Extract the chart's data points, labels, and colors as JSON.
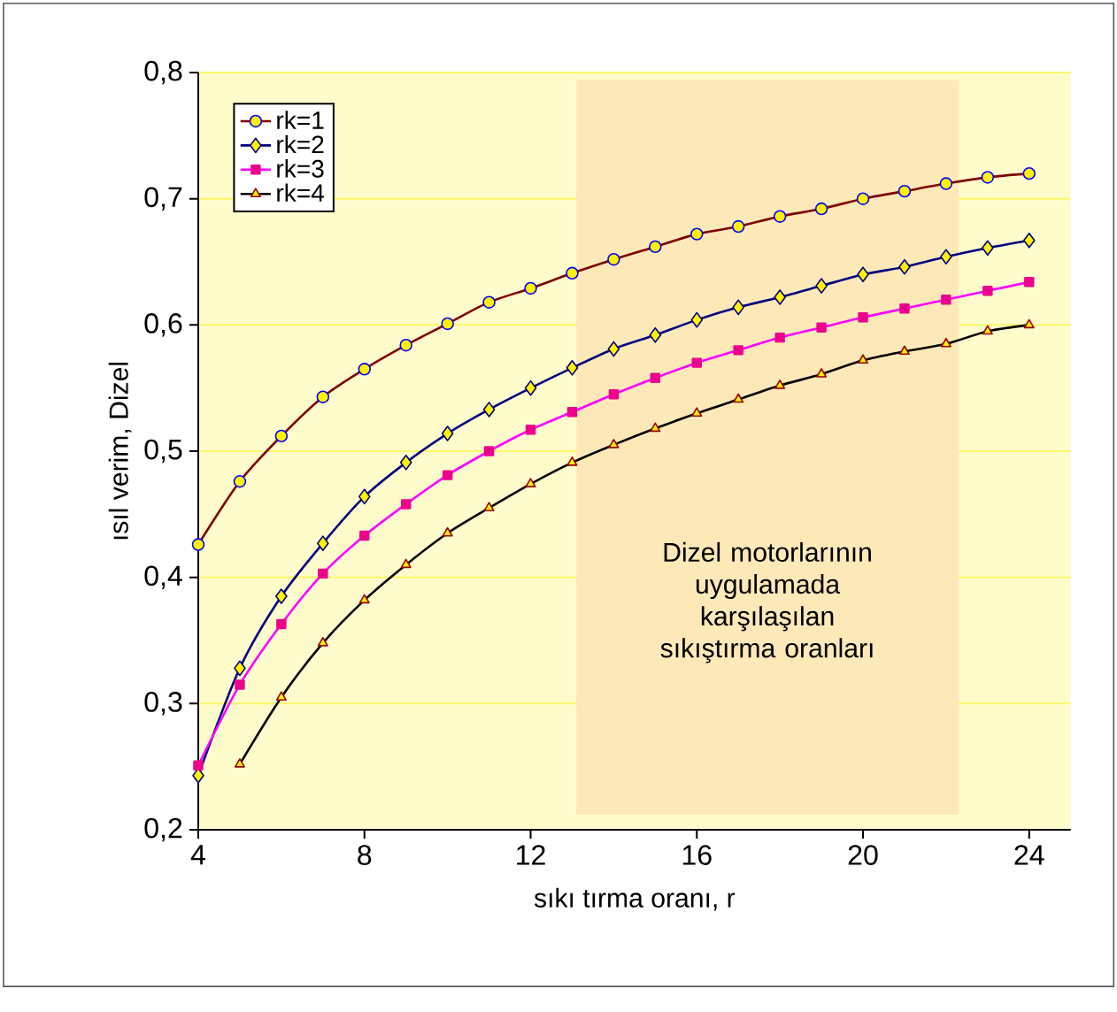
{
  "chart_data": {
    "type": "line",
    "xlabel": "sıkı tırma oranı, r",
    "ylabel": "ısıl verim,  Dizel",
    "x": [
      4,
      5,
      6,
      7,
      8,
      9,
      10,
      11,
      12,
      13,
      14,
      15,
      16,
      17,
      18,
      19,
      20,
      21,
      22,
      23,
      24
    ],
    "series": [
      {
        "name": "rk=1",
        "color": "#800000",
        "marker": "circle",
        "values": [
          0.426,
          0.476,
          0.512,
          0.543,
          0.565,
          0.584,
          0.601,
          0.618,
          0.629,
          0.641,
          0.652,
          0.662,
          0.672,
          0.678,
          0.686,
          0.692,
          0.7,
          0.706,
          0.712,
          0.717,
          0.72
        ]
      },
      {
        "name": "rk=2",
        "color": "#000080",
        "marker": "diamond",
        "values": [
          0.243,
          0.328,
          0.385,
          0.427,
          0.464,
          0.491,
          0.514,
          0.533,
          0.55,
          0.566,
          0.581,
          0.592,
          0.604,
          0.614,
          0.622,
          0.631,
          0.64,
          0.646,
          0.654,
          0.661,
          0.667
        ]
      },
      {
        "name": "rk=3",
        "color": "#ff00ff",
        "marker": "square",
        "values": [
          0.251,
          0.315,
          0.363,
          0.403,
          0.433,
          0.458,
          0.481,
          0.5,
          0.517,
          0.531,
          0.545,
          0.558,
          0.57,
          0.58,
          0.59,
          0.598,
          0.606,
          0.613,
          0.62,
          0.627,
          0.634
        ]
      },
      {
        "name": "rk=4",
        "color": "#000000",
        "marker": "triangle",
        "values": [
          null,
          0.252,
          0.305,
          0.348,
          0.382,
          0.41,
          0.435,
          0.455,
          0.474,
          0.491,
          0.505,
          0.518,
          0.53,
          0.541,
          0.552,
          0.561,
          0.572,
          0.579,
          0.585,
          0.595,
          0.6
        ]
      }
    ],
    "bands": [
      {
        "axis": "x",
        "from": 13.1,
        "to": 22.3,
        "label": "Dizel motorlarının uygulamada karşılaşılan sıkıştırma oranları",
        "color": "#fde9b8"
      }
    ],
    "xlim": [
      4,
      25
    ],
    "ylim": [
      0.2,
      0.8
    ],
    "xticks": [
      4,
      8,
      12,
      16,
      20,
      24
    ],
    "yticks": [
      {
        "value": 0.2,
        "label": "0,2"
      },
      {
        "value": 0.3,
        "label": "0,3"
      },
      {
        "value": 0.4,
        "label": "0,4"
      },
      {
        "value": 0.5,
        "label": "0,5"
      },
      {
        "value": 0.6,
        "label": "0,6"
      },
      {
        "value": 0.7,
        "label": "0,7"
      },
      {
        "value": 0.8,
        "label": "0,8"
      }
    ],
    "grid": "y",
    "legend": "top left",
    "line_style": "solid"
  }
}
